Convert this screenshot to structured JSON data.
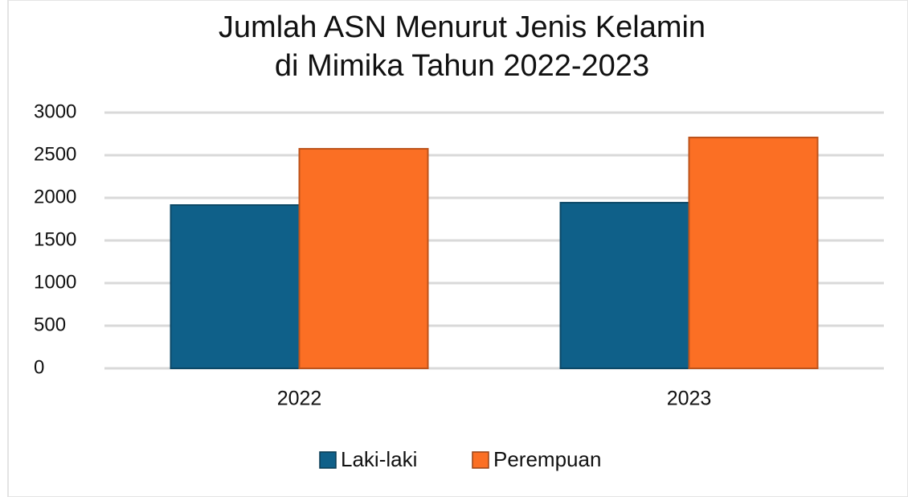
{
  "chart_data": {
    "type": "bar",
    "title": [
      "Jumlah ASN Menurut Jenis Kelamin",
      "di Mimika Tahun 2022-2023"
    ],
    "categories": [
      "2022",
      "2023"
    ],
    "series": [
      {
        "name": "Laki-laki",
        "color": "#0f6089",
        "values": [
          1915,
          1943
        ]
      },
      {
        "name": "Perempuan",
        "color": "#fb6f24",
        "values": [
          2575,
          2708
        ]
      }
    ],
    "ylim": [
      0,
      3000
    ],
    "yticks": [
      0,
      500,
      1000,
      1500,
      2000,
      2500,
      3000
    ],
    "grid": true,
    "legend": "bottom"
  }
}
